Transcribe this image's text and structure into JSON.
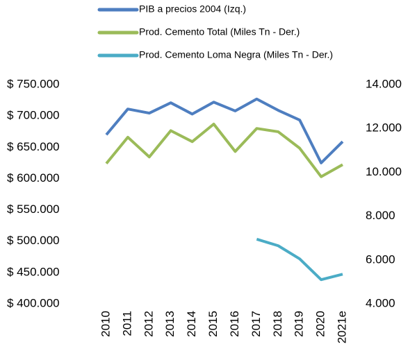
{
  "chart_data": {
    "type": "line",
    "categories": [
      "2010",
      "2011",
      "2012",
      "2013",
      "2014",
      "2015",
      "2016",
      "2017",
      "2018",
      "2019",
      "2020",
      "2021e"
    ],
    "series": [
      {
        "name": "PIB a precios 2004 (Izq.)",
        "color": "#4e7ec0",
        "axis": "y",
        "values": [
          670000,
          711000,
          704500,
          721000,
          703000,
          722000,
          708000,
          727000,
          709000,
          693500,
          625000,
          659000
        ]
      },
      {
        "name": "Prod. Cemento Total (Miles Tn - Der.)",
        "color": "#9bbb59",
        "axis": "y2",
        "values": [
          10400,
          11600,
          10700,
          11900,
          11400,
          12200,
          10950,
          12000,
          11850,
          11100,
          9800,
          10350
        ]
      },
      {
        "name": "Prod. Cemento Loma Negra (Miles Tn - Der.)",
        "color": "#4bacc6",
        "axis": "y2",
        "values": [
          null,
          null,
          null,
          null,
          null,
          null,
          null,
          6950,
          6650,
          6050,
          5100,
          5350
        ]
      }
    ],
    "ylim": [
      400000,
      750000
    ],
    "yticks": [
      {
        "value": 400000,
        "label": "$ 400.000"
      },
      {
        "value": 450000,
        "label": "$ 450.000"
      },
      {
        "value": 500000,
        "label": "$ 500.000"
      },
      {
        "value": 550000,
        "label": "$ 550.000"
      },
      {
        "value": 600000,
        "label": "$ 600.000"
      },
      {
        "value": 650000,
        "label": "$ 650.000"
      },
      {
        "value": 700000,
        "label": "$ 700.000"
      },
      {
        "value": 750000,
        "label": "$ 750.000"
      }
    ],
    "y2lim": [
      4000,
      14000
    ],
    "y2ticks": [
      {
        "value": 4000,
        "label": "4.000"
      },
      {
        "value": 6000,
        "label": "6.000"
      },
      {
        "value": 8000,
        "label": "8.000"
      },
      {
        "value": 10000,
        "label": "10.000"
      },
      {
        "value": 12000,
        "label": "12.000"
      },
      {
        "value": 14000,
        "label": "14.000"
      }
    ],
    "grid": false,
    "legend": "top"
  }
}
